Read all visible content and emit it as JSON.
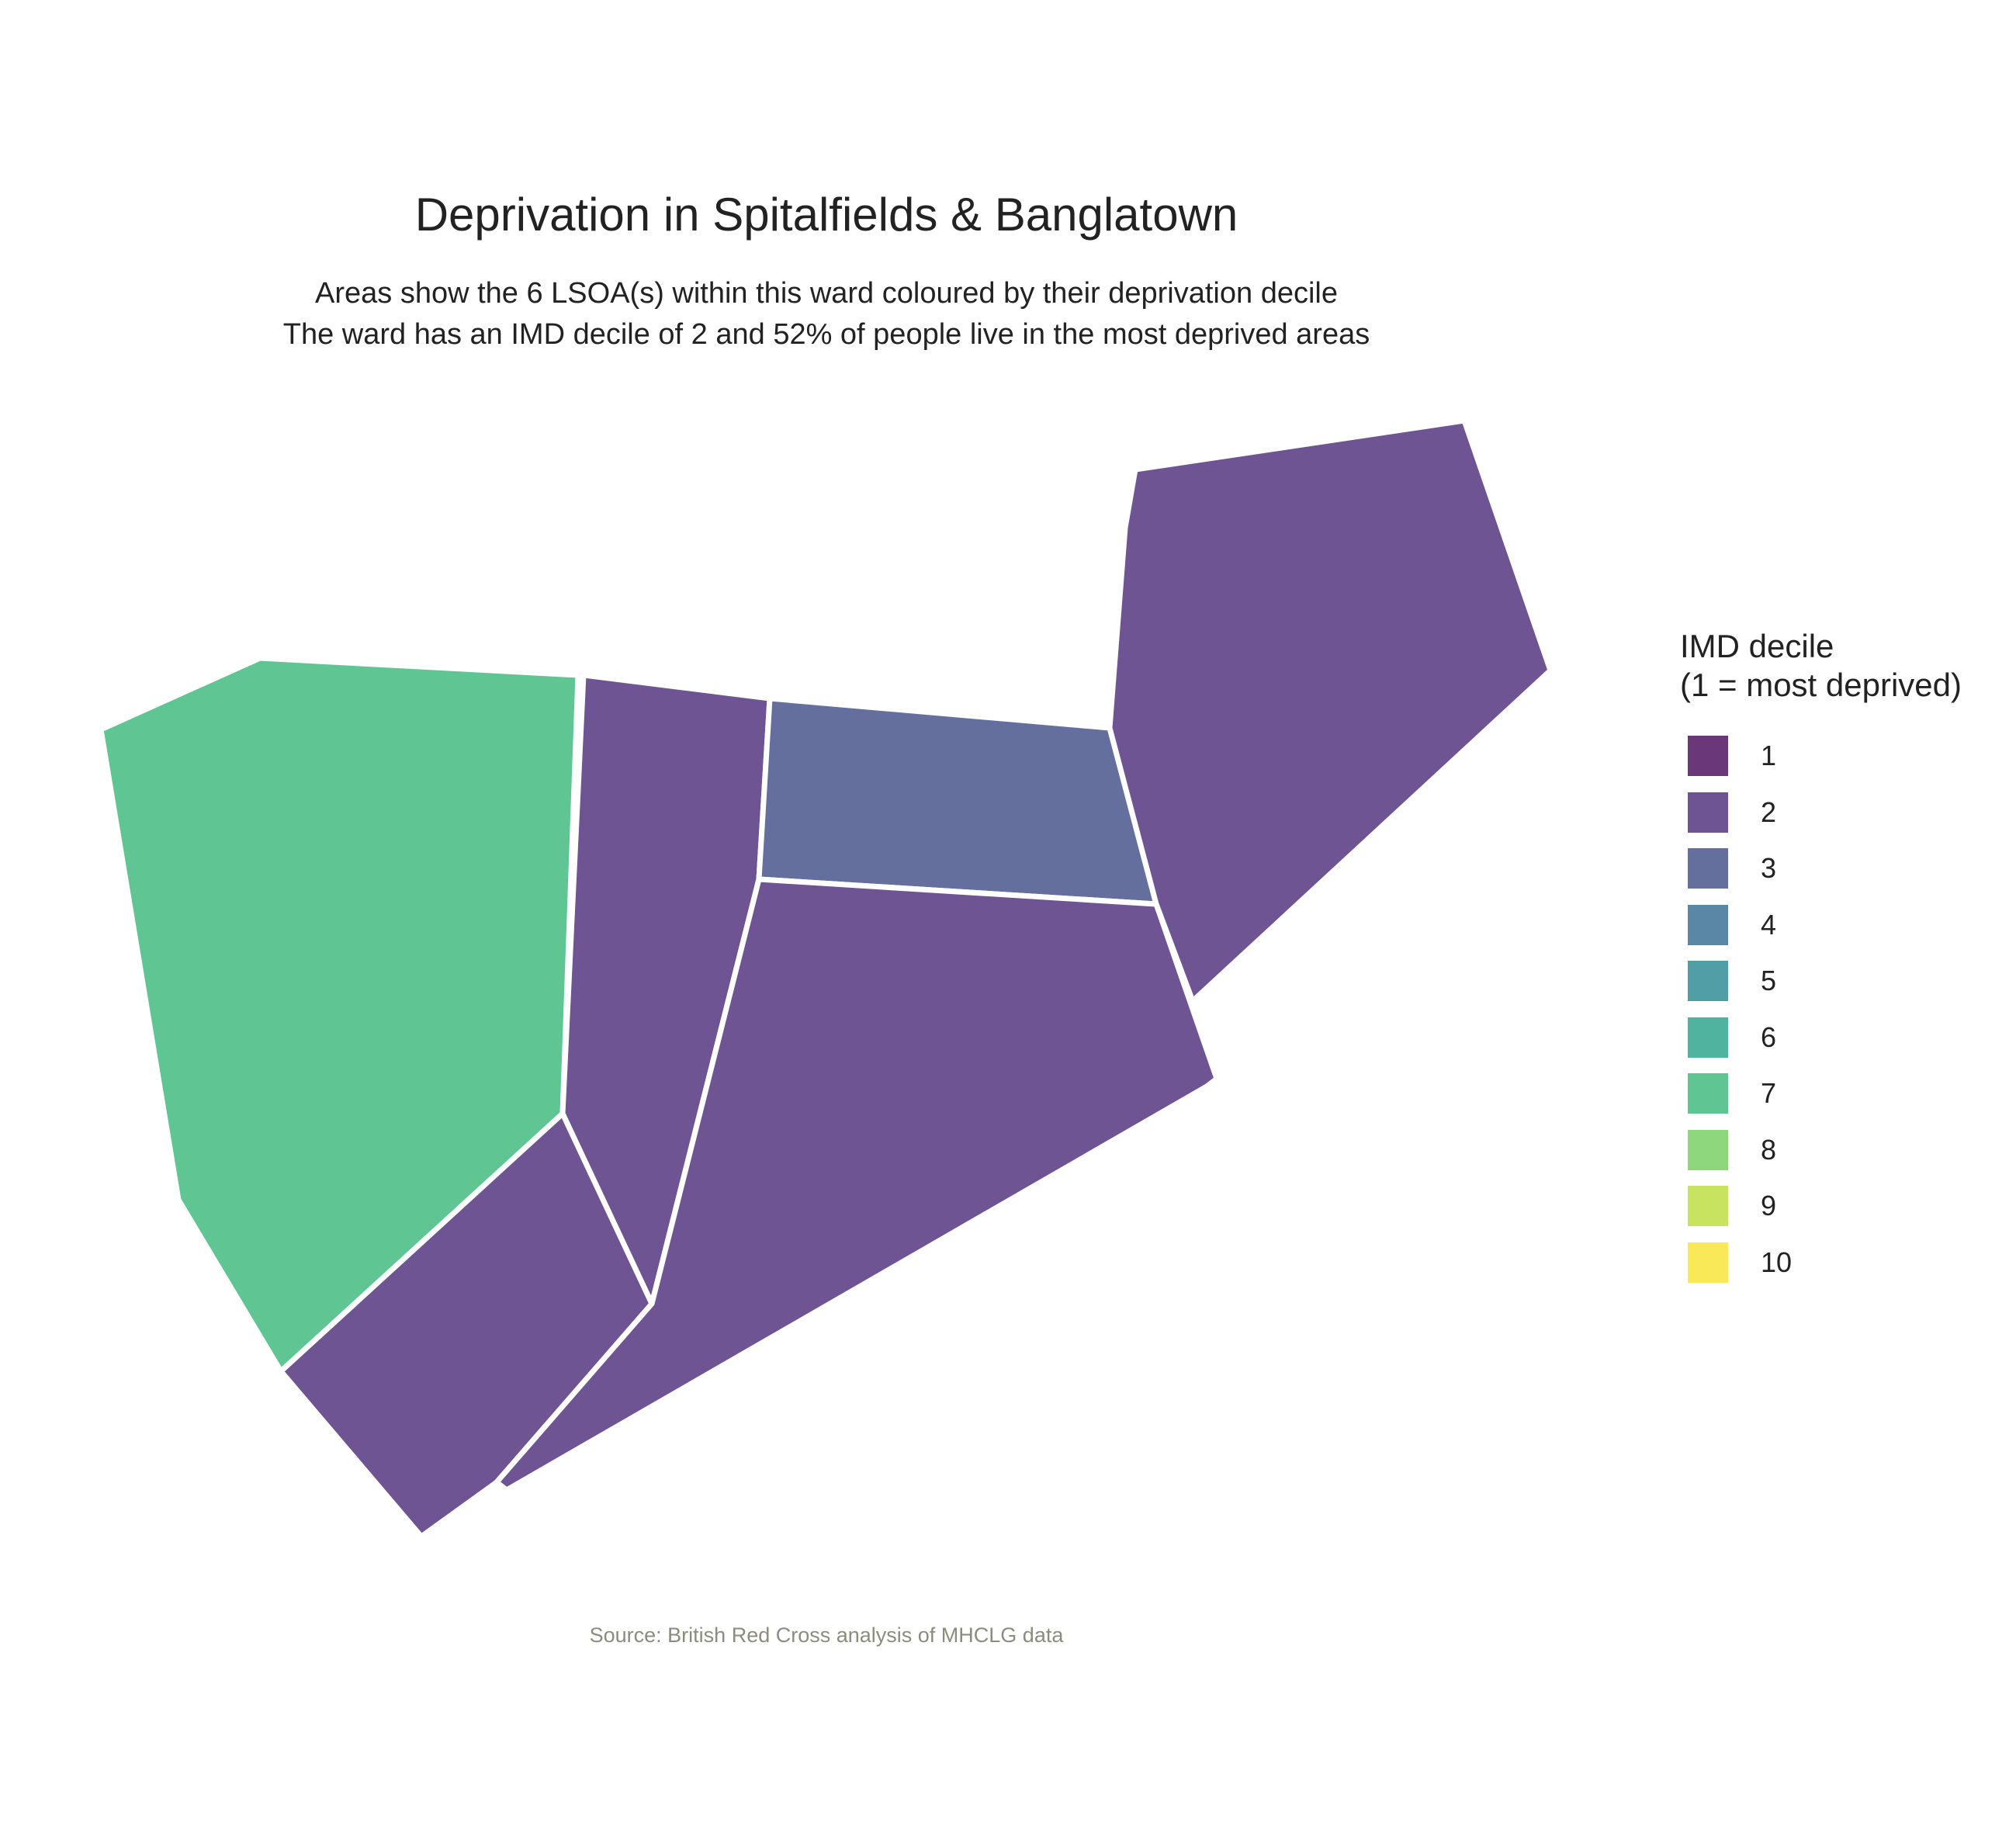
{
  "title": "Deprivation in Spitalfields & Banglatown",
  "subtitle_lines": [
    "Areas show the 6 LSOA(s) within this ward coloured by their deprivation decile",
    "The ward has an IMD decile of 2 and 52% of people live in the most deprived areas"
  ],
  "caption": "Source: British Red Cross analysis of MHCLG data",
  "legend": {
    "title_lines": [
      "IMD decile",
      "(1 = most deprived)"
    ],
    "items": [
      {
        "label": "1",
        "color": "#6a3779"
      },
      {
        "label": "2",
        "color": "#6e5493"
      },
      {
        "label": "3",
        "color": "#646f9e"
      },
      {
        "label": "4",
        "color": "#5a87a6"
      },
      {
        "label": "5",
        "color": "#529ea6"
      },
      {
        "label": "6",
        "color": "#50b3a0"
      },
      {
        "label": "7",
        "color": "#5ec593"
      },
      {
        "label": "8",
        "color": "#8fd77c"
      },
      {
        "label": "9",
        "color": "#c8e35f"
      },
      {
        "label": "10",
        "color": "#f9e858"
      }
    ]
  },
  "areas": [
    {
      "name": "lsoa-west",
      "decile": 7
    },
    {
      "name": "lsoa-west-central",
      "decile": 2
    },
    {
      "name": "lsoa-southwest",
      "decile": 2
    },
    {
      "name": "lsoa-central-north",
      "decile": 3
    },
    {
      "name": "lsoa-south-central",
      "decile": 2
    },
    {
      "name": "lsoa-northeast",
      "decile": 2
    }
  ]
}
